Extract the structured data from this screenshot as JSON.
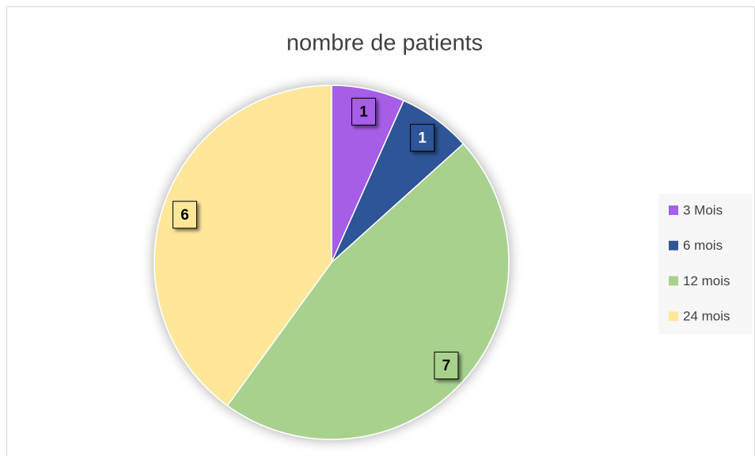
{
  "chart_data": {
    "type": "pie",
    "title": "nombre de patients",
    "categories": [
      "3 Mois",
      "6 mois",
      "12 mois",
      "24 mois"
    ],
    "values": [
      1,
      1,
      7,
      6
    ],
    "colors": [
      "#a65de8",
      "#2f5597",
      "#a9d18e",
      "#ffe699"
    ],
    "legend": "right"
  }
}
